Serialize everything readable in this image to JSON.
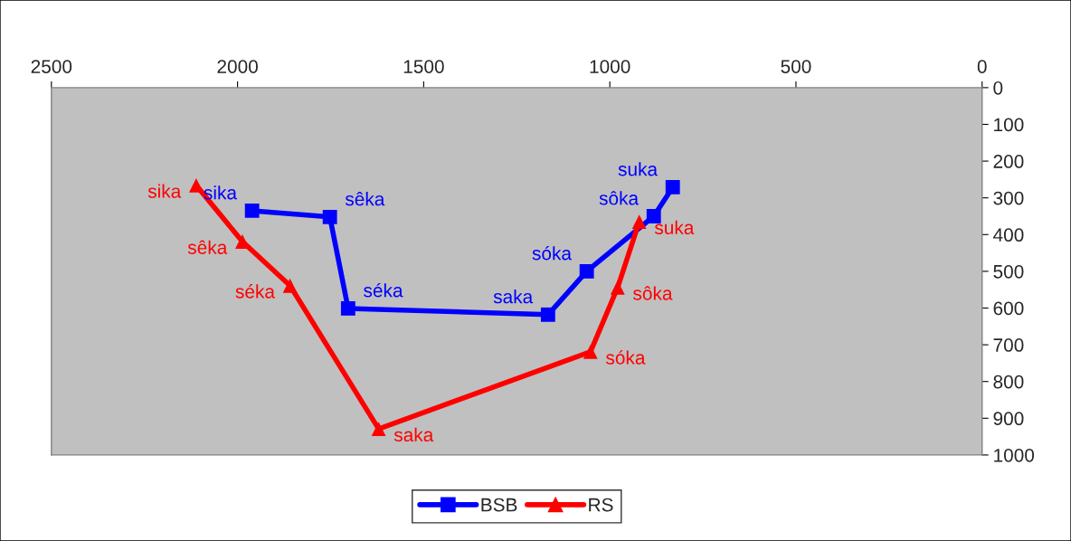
{
  "chart_data": {
    "type": "line",
    "xlim": [
      2500,
      0
    ],
    "xticks": [
      2500,
      2000,
      1500,
      1000,
      500,
      0
    ],
    "ylim": [
      1000,
      0
    ],
    "yticks": [
      0,
      100,
      200,
      300,
      400,
      500,
      600,
      700,
      800,
      900,
      1000
    ],
    "grid": false,
    "legend": "bottom",
    "line_style": "solid",
    "series": [
      {
        "name": "BSB",
        "color": "#0000ff",
        "marker": "square",
        "x": [
          1961,
          1752,
          1703,
          1166,
          1062,
          882,
          831
        ],
        "values": [
          335,
          352,
          601,
          618,
          500,
          350,
          271
        ],
        "value_labels": [
          "sika",
          "sêka",
          "séka",
          "saka",
          "sóka",
          "sôka",
          "suka"
        ]
      },
      {
        "name": "RS",
        "color": "#ff0000",
        "marker": "triangle",
        "x": [
          2111,
          1987,
          1859,
          1621,
          1052,
          979,
          921
        ],
        "values": [
          266,
          419,
          539,
          929,
          719,
          544,
          365
        ],
        "value_labels": [
          "sika",
          "sêka",
          "séka",
          "saka",
          "sóka",
          "sôka",
          "suka"
        ]
      }
    ]
  }
}
